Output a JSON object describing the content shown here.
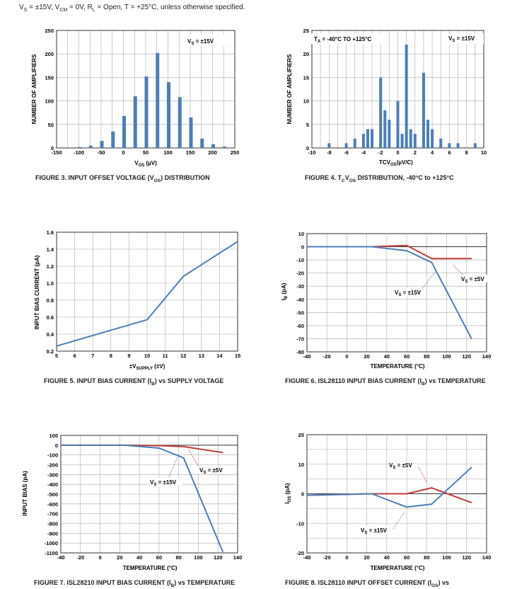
{
  "header": {
    "parts": [
      "V",
      "S",
      " = ±15V, V",
      "CM",
      " = 0V, R",
      "L",
      " = Open, T = +25°C, unless otherwise specified."
    ]
  },
  "chart_data": [
    {
      "id": "fig3",
      "type": "bar",
      "bar_color": "#4a7ebb",
      "x": [
        -150,
        -100,
        -75,
        -50,
        -25,
        0,
        25,
        50,
        75,
        100,
        125,
        150,
        175,
        200,
        225
      ],
      "values": [
        1,
        2,
        5,
        15,
        35,
        68,
        110,
        152,
        202,
        140,
        108,
        65,
        20,
        8,
        3
      ],
      "xlim": [
        -150,
        250
      ],
      "ylim": [
        0,
        250
      ],
      "xticks": [
        -150,
        -100,
        -50,
        0,
        50,
        100,
        150,
        200,
        250
      ],
      "yticks": [
        0,
        50,
        100,
        150,
        200,
        250
      ],
      "ylabel": "NUMBER OF AMPLIFIERS",
      "xlabel_parts": [
        "V",
        "OS",
        " (µV)"
      ],
      "annotations": [
        {
          "parts": [
            "V",
            "S",
            " = ±15V"
          ]
        }
      ],
      "caption_parts": [
        "FIGURE 3.  INPUT OFFSET VOLTAGE (V",
        "OS",
        ") DISTRIBUTION"
      ]
    },
    {
      "id": "fig4",
      "type": "bar",
      "bar_color": "#4a7ebb",
      "x": [
        -8,
        -6,
        -5,
        -4,
        -3.5,
        -3,
        -2,
        -1.5,
        -1,
        0,
        0.5,
        1,
        1.5,
        2,
        3,
        3.5,
        4,
        5,
        6,
        7,
        9
      ],
      "values": [
        1,
        1,
        2,
        3,
        4,
        4,
        15,
        8,
        6,
        10,
        3,
        22,
        4,
        3,
        16,
        6,
        4,
        2,
        1,
        1,
        1
      ],
      "xlim": [
        -10,
        10
      ],
      "ylim": [
        0,
        25
      ],
      "xticks": [
        -10,
        -8,
        -6,
        -4,
        -2,
        0,
        2,
        4,
        6,
        8,
        10
      ],
      "yticks": [
        0,
        5,
        10,
        15,
        20,
        25
      ],
      "ylabel": "NUMBER OF AMPLIFIERS",
      "xlabel_parts": [
        "TCV",
        "OS",
        "(µV/C)"
      ],
      "annotations": [
        {
          "parts": [
            "T",
            "A",
            " = -40°C TO +125°C"
          ]
        },
        {
          "parts": [
            "V",
            "S",
            " = ±15V"
          ]
        }
      ],
      "caption_parts": [
        "FIGURE 4.  T",
        "C",
        "V",
        "OS",
        " DISTRIBUTION, -40°C to +125°C"
      ]
    },
    {
      "id": "fig5",
      "type": "line",
      "xlim": [
        5,
        15
      ],
      "ylim": [
        0.2,
        1.6
      ],
      "xticks": [
        5,
        6,
        7,
        8,
        9,
        10,
        11,
        12,
        13,
        14,
        15
      ],
      "yticks": [
        0.2,
        0.4,
        0.6,
        0.8,
        1.0,
        1.2,
        1.4,
        1.6
      ],
      "ylabel": "INPUT BIAS CURRENT (pA)",
      "xlabel_parts": [
        "±V",
        "SUPPLY",
        " (±V)"
      ],
      "series": [
        {
          "name": "IB",
          "color": "#4a7ebb",
          "x": [
            5,
            10,
            12,
            15
          ],
          "y": [
            0.26,
            0.57,
            1.08,
            1.49
          ]
        }
      ],
      "caption_parts": [
        "FIGURE 5.  INPUT BIAS CURRENT (I",
        "B",
        ") vs SUPPLY VOLTAGE"
      ]
    },
    {
      "id": "fig6",
      "type": "line",
      "xlim": [
        -40,
        140
      ],
      "ylim": [
        -80,
        10
      ],
      "xticks": [
        -40,
        -20,
        0,
        20,
        40,
        60,
        80,
        100,
        120,
        140
      ],
      "yticks": [
        10,
        0,
        -10,
        -20,
        -30,
        -40,
        -50,
        -60,
        -70,
        -80
      ],
      "ylabel_parts": [
        "I",
        "B",
        " (pA)"
      ],
      "xlabel": "TEMPERATURE (°C)",
      "series": [
        {
          "name": "VS=±5V",
          "color": "#c0403a",
          "x": [
            -40,
            25,
            60,
            85,
            125
          ],
          "y": [
            0,
            0,
            1,
            -9,
            -9
          ]
        },
        {
          "name": "VS=±15V",
          "color": "#4a7ebb",
          "x": [
            -40,
            25,
            60,
            85,
            125
          ],
          "y": [
            0,
            0,
            -3,
            -12,
            -70
          ]
        }
      ],
      "annotations": [
        {
          "parts": [
            "V",
            "S",
            " = ±5V"
          ]
        },
        {
          "parts": [
            "V",
            "S",
            " = ±15V"
          ]
        }
      ],
      "caption_parts": [
        "FIGURE 6.  ISL28110 INPUT BIAS CURRENT (I",
        "B",
        ") vs TEMPERATURE"
      ]
    },
    {
      "id": "fig7",
      "type": "line",
      "xlim": [
        -40,
        140
      ],
      "ylim": [
        -1100,
        100
      ],
      "xticks": [
        -40,
        -20,
        0,
        20,
        40,
        60,
        80,
        100,
        120,
        140
      ],
      "yticks": [
        100,
        0,
        -100,
        -200,
        -300,
        -400,
        -500,
        -600,
        -700,
        -800,
        -900,
        -1000,
        -1100
      ],
      "ylabel": "INPUT BIAS (pA)",
      "xlabel": "TEMPERATURE (°C)",
      "series": [
        {
          "name": "VS=±5V",
          "color": "#c0403a",
          "x": [
            -40,
            25,
            60,
            85,
            125
          ],
          "y": [
            0,
            0,
            -5,
            -15,
            -75
          ]
        },
        {
          "name": "VS=±15V",
          "color": "#4a7ebb",
          "x": [
            -40,
            25,
            60,
            85,
            125
          ],
          "y": [
            0,
            0,
            -30,
            -130,
            -1090
          ]
        }
      ],
      "annotations": [
        {
          "parts": [
            "V",
            "S",
            " = ±5V"
          ]
        },
        {
          "parts": [
            "V",
            "S",
            " = ±15V"
          ]
        }
      ],
      "caption_parts": [
        "FIGURE 7.  ISL28210 INPUT BIAS CURRENT (I",
        "B",
        ") vs TEMPERATURE"
      ]
    },
    {
      "id": "fig8",
      "type": "line",
      "xlim": [
        -40,
        140
      ],
      "ylim": [
        -20,
        20
      ],
      "xticks": [
        -40,
        -20,
        0,
        20,
        40,
        60,
        80,
        100,
        120,
        140
      ],
      "yticks": [
        20,
        10,
        0,
        -10,
        -20
      ],
      "ylabel_parts": [
        "I",
        "OS",
        " (pA)"
      ],
      "xlabel": "TEMPERATURE (°C)",
      "series": [
        {
          "name": "VS=±5V",
          "color": "#c0403a",
          "x": [
            -40,
            25,
            60,
            85,
            125
          ],
          "y": [
            -0.5,
            0,
            0,
            2,
            -3
          ]
        },
        {
          "name": "VS=±15V",
          "color": "#4a7ebb",
          "x": [
            -40,
            25,
            60,
            85,
            125
          ],
          "y": [
            -0.5,
            0,
            -4.5,
            -3.5,
            9
          ]
        }
      ],
      "annotations": [
        {
          "parts": [
            "V",
            "S",
            " = ±5V"
          ]
        },
        {
          "parts": [
            "V",
            "S",
            " = ±15V"
          ]
        }
      ],
      "caption_parts": [
        "FIGURE 8.  ISL28110 INPUT OFFSET CURRENT (I",
        "OS",
        ") vs"
      ]
    }
  ]
}
